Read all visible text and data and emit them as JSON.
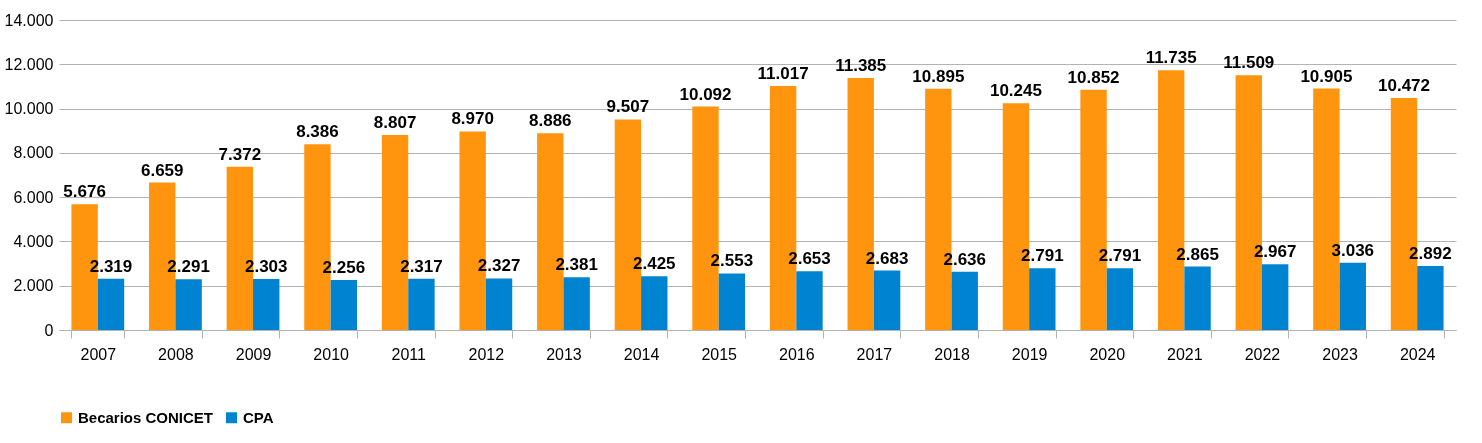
{
  "chart_data": {
    "type": "bar",
    "categories": [
      "2007",
      "2008",
      "2009",
      "2010",
      "2011",
      "2012",
      "2013",
      "2014",
      "2015",
      "2016",
      "2017",
      "2018",
      "2019",
      "2020",
      "2021",
      "2022",
      "2023",
      "2024"
    ],
    "series": [
      {
        "name": "Becarios CONICET",
        "color": "#ff950e",
        "values": [
          5676,
          6659,
          7372,
          8386,
          8807,
          8970,
          8886,
          9507,
          10092,
          11017,
          11385,
          10895,
          10245,
          10852,
          11735,
          11509,
          10905,
          10472
        ],
        "value_labels": [
          "5.676",
          "6.659",
          "7.372",
          "8.386",
          "8.807",
          "8.970",
          "8.886",
          "9.507",
          "10.092",
          "11.017",
          "11.385",
          "10.895",
          "10.245",
          "10.852",
          "11.735",
          "11.509",
          "10.905",
          "10.472"
        ]
      },
      {
        "name": "CPA",
        "color": "#0084d1",
        "values": [
          2319,
          2291,
          2303,
          2256,
          2317,
          2327,
          2381,
          2425,
          2553,
          2653,
          2683,
          2636,
          2791,
          2791,
          2865,
          2967,
          3036,
          2892
        ],
        "value_labels": [
          "2.319",
          "2.291",
          "2.303",
          "2.256",
          "2.317",
          "2.327",
          "2.381",
          "2.425",
          "2.553",
          "2.653",
          "2.683",
          "2.636",
          "2.791",
          "2.791",
          "2.865",
          "2.967",
          "3.036",
          "2.892"
        ]
      }
    ],
    "ylim": [
      0,
      14000
    ],
    "yticks": [
      0,
      {
        "value": 2000,
        "label": "2.000"
      },
      {
        "value": 4000,
        "label": "4.000"
      },
      {
        "value": 6000,
        "label": "6.000"
      },
      {
        "value": 8000,
        "label": "8.000"
      },
      {
        "value": 10000,
        "label": "10.000"
      },
      {
        "value": 12000,
        "label": "12.000"
      },
      {
        "value": 14000,
        "label": "14.000"
      }
    ],
    "grid": "y",
    "legend": "bottom"
  }
}
